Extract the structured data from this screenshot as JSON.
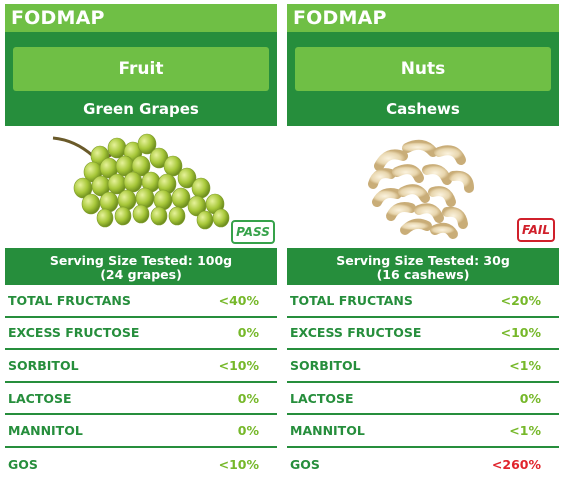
{
  "cards": [
    {
      "brand": "FODMAP",
      "category": "Fruit",
      "item": "Green Grapes",
      "image": "green-grapes",
      "badge": "PASS",
      "serving_line1": "Serving Size Tested: 100g",
      "serving_line2": "(24 grapes)",
      "nutrients": [
        {
          "name": "TOTAL FRUCTANS",
          "value": "<40%"
        },
        {
          "name": "EXCESS FRUCTOSE",
          "value": "0%"
        },
        {
          "name": "SORBITOL",
          "value": "<10%"
        },
        {
          "name": "LACTOSE",
          "value": "0%"
        },
        {
          "name": "MANNITOL",
          "value": "0%"
        },
        {
          "name": "GOS",
          "value": "<10%"
        }
      ]
    },
    {
      "brand": "FODMAP",
      "category": "Nuts",
      "item": "Cashews",
      "image": "cashews",
      "badge": "FAIL",
      "serving_line1": "Serving Size Tested: 30g",
      "serving_line2": "(16 cashews)",
      "nutrients": [
        {
          "name": "TOTAL FRUCTANS",
          "value": "<20%"
        },
        {
          "name": "EXCESS FRUCTOSE",
          "value": "<10%"
        },
        {
          "name": "SORBITOL",
          "value": "<1%"
        },
        {
          "name": "LACTOSE",
          "value": "0%"
        },
        {
          "name": "MANNITOL",
          "value": "<1%"
        },
        {
          "name": "GOS",
          "value": "<260%"
        }
      ]
    }
  ],
  "colors": {
    "light_green": "#6fbf45",
    "dark_green": "#268e3c",
    "value_green": "#76b82a",
    "fail_red": "#e1242c"
  }
}
